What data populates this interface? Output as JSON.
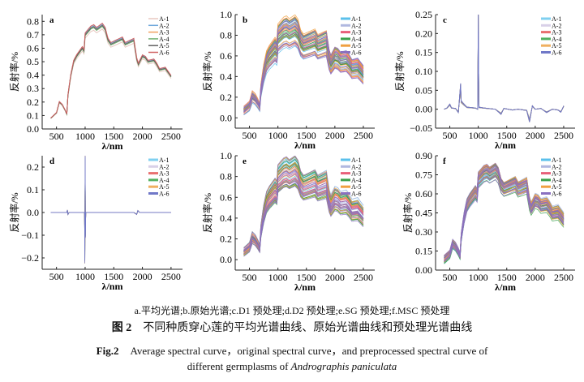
{
  "caption": {
    "subpanels": "a.平均光谱;b.原始光谱;c.D1 预处理;d.D2 预处理;e.SG 预处理;f.MSC 预处理",
    "cn_label": "图 2",
    "cn_title": "不同种质穿心莲的平均光谱曲线、原始光谱曲线和预处理光谱曲线",
    "en_label": "Fig.2",
    "en_title_1": "Average spectral curve，original spectral curve，and preprocessed spectral curve of",
    "en_title_2a": "different germplasms of ",
    "en_title_2b": "Andrographis paniculata"
  },
  "chart_data": [
    {
      "id": "a",
      "type": "line",
      "title": "a",
      "xlabel": "λ/nm",
      "ylabel": "反射率/%",
      "xlim": [
        250,
        2700
      ],
      "ylim": [
        0,
        0.85
      ],
      "xticks": [
        "500",
        "1000",
        "1500",
        "2000",
        "2500"
      ],
      "yticks": [
        "0.0",
        "0.1",
        "0.2",
        "0.3",
        "0.4",
        "0.5",
        "0.6",
        "0.7",
        "0.8"
      ],
      "ytick_values": [
        0,
        0.1,
        0.2,
        0.3,
        0.4,
        0.5,
        0.6,
        0.7,
        0.8
      ],
      "legend": "top-right",
      "kind": "mean",
      "series": [
        {
          "name": "A-1",
          "color": "#e8c8c0",
          "scale": 0.965
        },
        {
          "name": "A-2",
          "color": "#6fa8dc",
          "scale": 1.01
        },
        {
          "name": "A-3",
          "color": "#f0a060",
          "scale": 1.0
        },
        {
          "name": "A-4",
          "color": "#70b070",
          "scale": 0.99
        },
        {
          "name": "A-5",
          "color": "#606060",
          "scale": 1.0
        },
        {
          "name": "A-6",
          "color": "#d06060",
          "scale": 1.02
        }
      ]
    },
    {
      "id": "b",
      "type": "line",
      "title": "b",
      "xlabel": "λ/nm",
      "ylabel": "反射率/%",
      "xlim": [
        250,
        2700
      ],
      "ylim": [
        -0.1,
        1.0
      ],
      "xticks": [
        "500",
        "1000",
        "1500",
        "2000",
        "2500"
      ],
      "yticks": [
        "0.0",
        "0.2",
        "0.4",
        "0.6",
        "0.8",
        "1.0"
      ],
      "ytick_values": [
        0,
        0.2,
        0.4,
        0.6,
        0.8,
        1.0
      ],
      "legend": "top-right",
      "kind": "raw",
      "spread": [
        0.85,
        1.2
      ],
      "series": [
        {
          "name": "A-1",
          "color": "#5bc0eb"
        },
        {
          "name": "A-2",
          "color": "#b0b8e0"
        },
        {
          "name": "A-3",
          "color": "#e8607a"
        },
        {
          "name": "A-4",
          "color": "#3aa04a"
        },
        {
          "name": "A-5",
          "color": "#f0a040"
        },
        {
          "name": "A-6",
          "color": "#8a70c0"
        }
      ]
    },
    {
      "id": "c",
      "type": "line",
      "title": "c",
      "xlabel": "λ/nm",
      "ylabel": "反射率/%",
      "xlim": [
        250,
        2700
      ],
      "ylim": [
        -0.05,
        0.25
      ],
      "xticks": [
        "500",
        "1000",
        "1500",
        "2000",
        "2500"
      ],
      "yticks": [
        "−0.05",
        "0.00",
        "0.05",
        "0.10",
        "0.15",
        "0.20",
        "0.25"
      ],
      "ytick_values": [
        -0.05,
        0,
        0.05,
        0.1,
        0.15,
        0.2,
        0.25
      ],
      "legend": "top-right",
      "kind": "d1",
      "series": [
        {
          "name": "A-1",
          "color": "#80d0f0"
        },
        {
          "name": "A-2",
          "color": "#d8d0e8"
        },
        {
          "name": "A-3",
          "color": "#e87070"
        },
        {
          "name": "A-4",
          "color": "#50b060"
        },
        {
          "name": "A-5",
          "color": "#f0b060"
        },
        {
          "name": "A-6",
          "color": "#7078c8"
        }
      ]
    },
    {
      "id": "d",
      "type": "line",
      "title": "d",
      "xlabel": "λ/nm",
      "ylabel": "反射率/%",
      "xlim": [
        250,
        2700
      ],
      "ylim": [
        -0.25,
        0.25
      ],
      "xticks": [
        "500",
        "1000",
        "1500",
        "2000",
        "2500"
      ],
      "yticks": [
        "−0.2",
        "−0.1",
        "0.0",
        "0.1",
        "0.2"
      ],
      "ytick_values": [
        -0.2,
        -0.1,
        0,
        0.1,
        0.2
      ],
      "legend": "top-right",
      "kind": "d2",
      "series": [
        {
          "name": "A-1",
          "color": "#80d0f0"
        },
        {
          "name": "A-2",
          "color": "#d8d0e8"
        },
        {
          "name": "A-3",
          "color": "#e87070"
        },
        {
          "name": "A-4",
          "color": "#50b060"
        },
        {
          "name": "A-5",
          "color": "#f0b060"
        },
        {
          "name": "A-6",
          "color": "#7078c8"
        }
      ]
    },
    {
      "id": "e",
      "type": "line",
      "title": "e",
      "xlabel": "λ/nm",
      "ylabel": "反射率/%",
      "xlim": [
        250,
        2700
      ],
      "ylim": [
        -0.1,
        1.0
      ],
      "xticks": [
        "500",
        "1000",
        "1500",
        "2000",
        "2500"
      ],
      "yticks": [
        "0.0",
        "0.2",
        "0.4",
        "0.6",
        "0.8",
        "1.0"
      ],
      "ytick_values": [
        0,
        0.2,
        0.4,
        0.6,
        0.8,
        1.0
      ],
      "legend": "top-right",
      "kind": "raw",
      "spread": [
        0.85,
        1.2
      ],
      "series": [
        {
          "name": "A-1",
          "color": "#5bc0eb"
        },
        {
          "name": "A-2",
          "color": "#b0b8e0"
        },
        {
          "name": "A-3",
          "color": "#e8607a"
        },
        {
          "name": "A-4",
          "color": "#3aa04a"
        },
        {
          "name": "A-5",
          "color": "#f0a040"
        },
        {
          "name": "A-6",
          "color": "#8a70c0"
        }
      ]
    },
    {
      "id": "f",
      "type": "line",
      "title": "f",
      "xlabel": "λ/nm",
      "ylabel": "反射率/%",
      "xlim": [
        250,
        2700
      ],
      "ylim": [
        0,
        0.9
      ],
      "xticks": [
        "500",
        "1000",
        "1500",
        "2000",
        "2500"
      ],
      "yticks": [
        "0.00",
        "0.15",
        "0.30",
        "0.45",
        "0.60",
        "0.75",
        "0.90"
      ],
      "ytick_values": [
        0,
        0.15,
        0.3,
        0.45,
        0.6,
        0.75,
        0.9
      ],
      "legend": "top-right",
      "kind": "msc",
      "spread": [
        0.9,
        1.08
      ],
      "series": [
        {
          "name": "A-1",
          "color": "#5bc0eb"
        },
        {
          "name": "A-2",
          "color": "#b0b8e0"
        },
        {
          "name": "A-3",
          "color": "#e8607a"
        },
        {
          "name": "A-4",
          "color": "#3aa04a"
        },
        {
          "name": "A-5",
          "color": "#f0a040"
        },
        {
          "name": "A-6",
          "color": "#8a70c0"
        }
      ]
    }
  ],
  "mean_spectrum": {
    "x": [
      400,
      450,
      500,
      550,
      600,
      650,
      680,
      700,
      750,
      800,
      850,
      900,
      950,
      980,
      1000,
      1100,
      1150,
      1200,
      1300,
      1350,
      1400,
      1450,
      1500,
      1600,
      1650,
      1700,
      1800,
      1850,
      1900,
      1930,
      2000,
      2050,
      2100,
      2200,
      2250,
      2300,
      2400,
      2450,
      2500
    ],
    "y": [
      0.08,
      0.1,
      0.12,
      0.2,
      0.18,
      0.14,
      0.11,
      0.25,
      0.4,
      0.5,
      0.54,
      0.57,
      0.6,
      0.58,
      0.7,
      0.75,
      0.76,
      0.74,
      0.77,
      0.74,
      0.66,
      0.63,
      0.64,
      0.66,
      0.67,
      0.63,
      0.65,
      0.66,
      0.52,
      0.48,
      0.54,
      0.53,
      0.5,
      0.51,
      0.48,
      0.44,
      0.45,
      0.42,
      0.39
    ]
  },
  "d1_spectrum": {
    "x": [
      400,
      450,
      500,
      530,
      600,
      650,
      690,
      700,
      750,
      800,
      950,
      990,
      1000,
      1010,
      1100,
      1300,
      1400,
      1450,
      1600,
      1700,
      1850,
      1900,
      1950,
      2000,
      2100,
      2200,
      2300,
      2400,
      2450,
      2500
    ],
    "y": [
      0,
      0.003,
      0.012,
      0.003,
      0.002,
      -0.008,
      0.06,
      0.02,
      0.012,
      0.005,
      0.003,
      0,
      0.23,
      0.005,
      0.003,
      0,
      -0.012,
      0.002,
      -0.002,
      0,
      -0.003,
      -0.03,
      0.008,
      0,
      0.002,
      -0.008,
      0,
      -0.002,
      -0.007,
      0.008
    ]
  },
  "d2_spectrum": {
    "x": [
      400,
      680,
      690,
      700,
      720,
      990,
      995,
      1000,
      1005,
      1010,
      1850,
      1900,
      1920,
      1950,
      2500
    ],
    "y": [
      0,
      0,
      0.01,
      -0.008,
      0,
      0,
      -0.2,
      0.23,
      -0.1,
      0,
      0,
      -0.008,
      0.008,
      0,
      0
    ]
  }
}
